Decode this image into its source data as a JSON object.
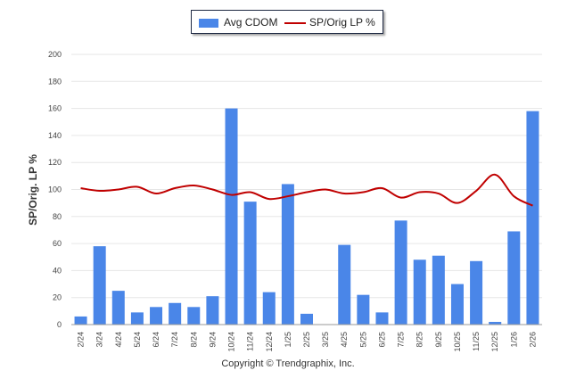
{
  "chart_data": {
    "type": "bar",
    "categories": [
      "2/24",
      "3/24",
      "4/24",
      "5/24",
      "6/24",
      "7/24",
      "8/24",
      "9/24",
      "10/24",
      "11/24",
      "12/24",
      "1/25",
      "2/25",
      "3/25",
      "4/25",
      "5/25",
      "6/25",
      "7/25",
      "8/25",
      "9/25",
      "10/25",
      "11/25",
      "12/25",
      "1/26",
      "2/26"
    ],
    "series": [
      {
        "name": "Avg CDOM",
        "kind": "bar",
        "color": "#4a86e8",
        "values": [
          6,
          58,
          25,
          9,
          13,
          16,
          13,
          21,
          160,
          91,
          24,
          104,
          8,
          0,
          59,
          22,
          9,
          77,
          48,
          51,
          30,
          47,
          2,
          69,
          158
        ]
      },
      {
        "name": "SP/Orig LP %",
        "kind": "line",
        "color": "#c00000",
        "values": [
          101,
          99,
          100,
          102,
          97,
          101,
          103,
          100,
          96,
          98,
          93,
          95,
          98,
          100,
          97,
          98,
          101,
          94,
          98,
          97,
          90,
          99,
          111,
          95,
          88
        ]
      }
    ],
    "ylabel": "SP/Orig. LP %",
    "ylim": [
      0,
      200
    ],
    "yticks": [
      0,
      20,
      40,
      60,
      80,
      100,
      120,
      140,
      160,
      180,
      200
    ],
    "grid": true,
    "legend_position": "top-center",
    "copyright": "Copyright © Trendgraphix, Inc."
  }
}
